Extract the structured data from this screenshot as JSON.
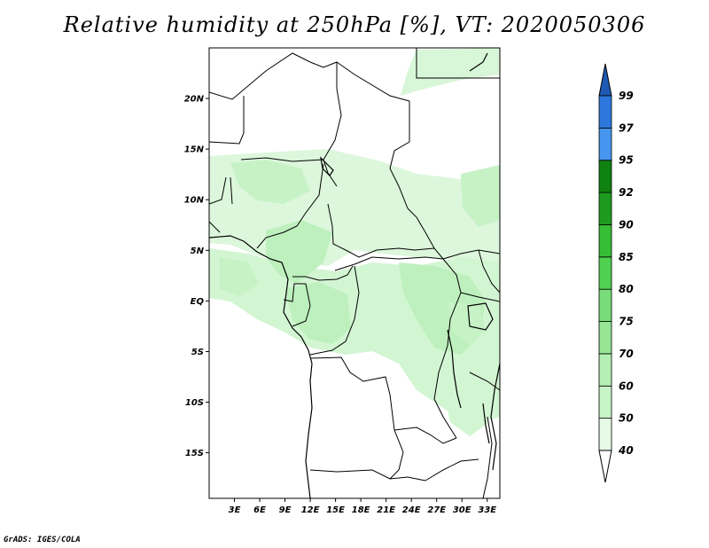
{
  "title": "Relative humidity at 250hPa [%], VT: 2020050306",
  "credit": "GrADS: IGES/COLA",
  "map": {
    "lat_ticks": [
      "20N",
      "15N",
      "10N",
      "5N",
      "EQ",
      "5S",
      "10S",
      "15S"
    ],
    "lon_ticks": [
      "3E",
      "6E",
      "9E",
      "12E",
      "15E",
      "18E",
      "21E",
      "24E",
      "27E",
      "30E",
      "33E"
    ],
    "lon_range": [
      0,
      34.5
    ],
    "lat_range": [
      -19.5,
      25
    ]
  },
  "colorbar": {
    "levels": [
      "40",
      "50",
      "60",
      "70",
      "75",
      "80",
      "85",
      "90",
      "92",
      "95",
      "97",
      "99"
    ],
    "colors": [
      "#ffffff",
      "#e6fae6",
      "#c8f5c8",
      "#b4f0b4",
      "#96e696",
      "#78dc78",
      "#50d250",
      "#37be37",
      "#1e9b1e",
      "#0f820f",
      "#4696f0",
      "#2d78dc",
      "#1e5ab4"
    ]
  }
}
